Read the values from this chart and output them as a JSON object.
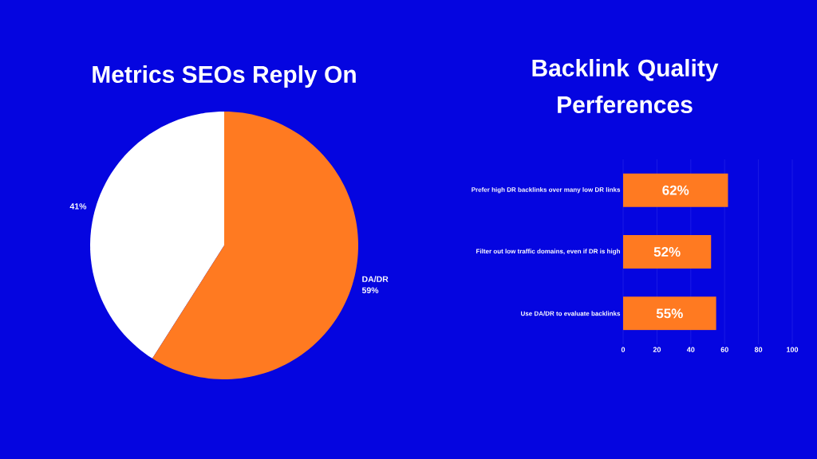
{
  "chart_data": [
    {
      "type": "pie",
      "title": "Metrics SEOs Reply On",
      "categories": [
        null,
        "DA/DR"
      ],
      "values": [
        41,
        59
      ],
      "colors": [
        "#ffffff",
        "#ff7a21"
      ],
      "value_labels": [
        "41%",
        "59%"
      ]
    },
    {
      "type": "bar",
      "title": "Backlink Quality Perferences",
      "orientation": "horizontal",
      "categories": [
        "Prefer high DR backlinks over many low DR links",
        "Filter out low traffic domains, even if DR is high",
        "Use DA/DR to evaluate backlinks"
      ],
      "values": [
        62,
        52,
        55
      ],
      "value_labels": [
        "62%",
        "52%",
        "55%"
      ],
      "color": "#ff7a21",
      "xlim": [
        0,
        100
      ],
      "xticks": [
        0,
        20,
        40,
        60,
        80,
        100
      ],
      "grid": "x"
    }
  ]
}
